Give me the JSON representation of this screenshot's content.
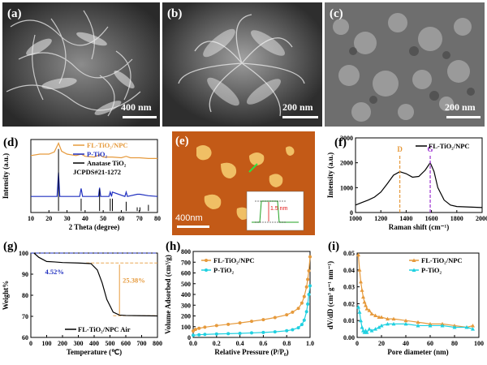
{
  "figure": {
    "panels": {
      "a": {
        "label": "(a)",
        "scale_bar": "400 nm"
      },
      "b": {
        "label": "(b)",
        "scale_bar": "200 nm"
      },
      "c": {
        "label": "(c)",
        "scale_bar": "200 nm"
      },
      "e": {
        "label": "(e)",
        "scale_bar": "400nm",
        "inset_label": "1.5 nm"
      }
    },
    "colors": {
      "orange": "#e69a3c",
      "blue": "#2030c0",
      "cyan": "#20d0e0",
      "black": "#000000",
      "afm_base": "#c35a17"
    }
  },
  "chart_data": [
    {
      "panel": "(d)",
      "type": "line",
      "xlabel": "2 Theta (degree)",
      "ylabel": "Intensity (a.u.)",
      "xlim": [
        10,
        80
      ],
      "xticks": [
        10,
        20,
        30,
        40,
        50,
        60,
        70,
        80
      ],
      "legend": [
        "FL-TiO₂/NPC",
        "P-TiO₂",
        "Anatase TiO₂",
        "JCPDS#21-1272"
      ],
      "legend_loc": "top-right",
      "series": [
        {
          "name": "FL-TiO₂/NPC",
          "x": [
            10,
            15,
            20,
            23,
            25.3,
            27,
            30,
            35,
            37.8,
            40,
            45,
            48,
            50,
            55,
            60,
            62.7,
            65,
            70,
            75,
            80
          ],
          "y": [
            0.78,
            0.8,
            0.8,
            0.83,
            0.95,
            0.84,
            0.8,
            0.78,
            0.8,
            0.77,
            0.76,
            0.79,
            0.76,
            0.76,
            0.75,
            0.77,
            0.75,
            0.75,
            0.74,
            0.74
          ]
        },
        {
          "name": "P-TiO₂",
          "x": [
            10,
            24.5,
            25.3,
            26,
            37,
            37.8,
            38.6,
            47.4,
            48,
            48.6,
            53.2,
            53.9,
            54.6,
            55.1,
            62,
            62.7,
            63.4,
            68.8,
            70.3,
            75,
            80
          ],
          "y": [
            0.22,
            0.22,
            0.55,
            0.22,
            0.22,
            0.33,
            0.22,
            0.22,
            0.34,
            0.22,
            0.22,
            0.28,
            0.22,
            0.28,
            0.22,
            0.28,
            0.22,
            0.25,
            0.25,
            0.23,
            0.22
          ]
        },
        {
          "name": "Anatase TiO₂",
          "sticks_x": [
            25.3,
            37.8,
            48.0,
            53.9,
            55.1,
            62.7,
            68.8,
            70.3,
            75.0
          ],
          "sticks_h": [
            1.0,
            0.2,
            0.35,
            0.2,
            0.2,
            0.15,
            0.06,
            0.06,
            0.1
          ]
        }
      ]
    },
    {
      "panel": "(f)",
      "type": "line",
      "title": "FL-TiO₂/NPC",
      "xlabel": "Raman shift (cm⁻¹)",
      "ylabel": "Intensity (a.u.)",
      "xlim": [
        1000,
        2000
      ],
      "ylim": [
        0,
        3000
      ],
      "xticks": [
        1000,
        1200,
        1400,
        1600,
        1800,
        2000
      ],
      "yticks": [
        0,
        1000,
        2000,
        3000
      ],
      "annotations": [
        {
          "text": "D",
          "x": 1350
        },
        {
          "text": "G",
          "x": 1590
        }
      ],
      "series": [
        {
          "name": "FL-TiO₂/NPC",
          "x": [
            1000,
            1050,
            1100,
            1150,
            1200,
            1250,
            1300,
            1350,
            1400,
            1450,
            1500,
            1550,
            1590,
            1620,
            1650,
            1700,
            1750,
            1800,
            1900,
            2000
          ],
          "y": [
            300,
            400,
            500,
            620,
            820,
            1150,
            1500,
            1640,
            1560,
            1420,
            1450,
            1700,
            2000,
            1650,
            1000,
            500,
            300,
            240,
            220,
            200
          ]
        }
      ]
    },
    {
      "panel": "(g)",
      "type": "line",
      "xlabel": "Temperature (℃)",
      "ylabel": "Weight%",
      "xlim": [
        0,
        800
      ],
      "ylim": [
        60,
        100
      ],
      "xticks": [
        0,
        100,
        200,
        300,
        400,
        500,
        600,
        700,
        800
      ],
      "yticks": [
        60,
        70,
        80,
        90,
        100
      ],
      "annotations": [
        "4.52%",
        "25.38%"
      ],
      "series": [
        {
          "name": "FL-TiO₂/NPC Air",
          "x": [
            20,
            50,
            100,
            150,
            200,
            300,
            380,
            420,
            450,
            480,
            520,
            560,
            600,
            700,
            800
          ],
          "y": [
            100,
            98,
            96,
            95.8,
            95.5,
            95.3,
            95,
            92,
            86,
            78,
            72,
            70.6,
            70.4,
            70.3,
            70.2
          ]
        }
      ]
    },
    {
      "panel": "(h)",
      "type": "line",
      "xlabel": "Relative Pressure (P/P₀)",
      "ylabel": "Volume Adsorbed (cm³/g)",
      "xlim": [
        0,
        1
      ],
      "ylim": [
        0,
        800
      ],
      "xticks": [
        0.0,
        0.2,
        0.4,
        0.6,
        0.8,
        1.0
      ],
      "yticks": [
        0,
        100,
        200,
        300,
        400,
        500,
        600,
        700,
        800
      ],
      "series": [
        {
          "name": "FL-TiO₂/NPC",
          "x": [
            0.0,
            0.02,
            0.05,
            0.1,
            0.2,
            0.3,
            0.4,
            0.5,
            0.6,
            0.7,
            0.8,
            0.85,
            0.9,
            0.93,
            0.95,
            0.97,
            0.98,
            0.99,
            1.0
          ],
          "y": [
            60,
            75,
            85,
            95,
            110,
            122,
            135,
            150,
            165,
            185,
            210,
            235,
            270,
            320,
            380,
            470,
            540,
            620,
            750
          ]
        },
        {
          "name": "P-TiO₂",
          "x": [
            0.0,
            0.05,
            0.1,
            0.2,
            0.3,
            0.4,
            0.5,
            0.6,
            0.7,
            0.8,
            0.85,
            0.9,
            0.93,
            0.95,
            0.97,
            0.98,
            0.99,
            1.0
          ],
          "y": [
            20,
            25,
            28,
            32,
            35,
            38,
            42,
            46,
            52,
            62,
            72,
            90,
            120,
            160,
            240,
            310,
            400,
            480
          ]
        }
      ]
    },
    {
      "panel": "(i)",
      "type": "line",
      "xlabel": "Pore diameter (nm)",
      "ylabel": "dV/dD (cm³ g⁻¹ nm⁻¹)",
      "xlim": [
        0,
        100
      ],
      "ylim": [
        0,
        0.05
      ],
      "xticks": [
        0,
        20,
        40,
        60,
        80,
        100
      ],
      "yticks": [
        0.0,
        0.01,
        0.02,
        0.03,
        0.04,
        0.05
      ],
      "series": [
        {
          "name": "FL-TiO₂/NPC",
          "x": [
            1,
            2,
            3,
            4,
            5,
            6,
            7,
            8,
            10,
            12,
            15,
            18,
            20,
            25,
            30,
            40,
            50,
            60,
            70,
            80,
            90,
            95
          ],
          "y": [
            0.049,
            0.04,
            0.033,
            0.028,
            0.024,
            0.021,
            0.019,
            0.017,
            0.016,
            0.014,
            0.013,
            0.012,
            0.012,
            0.011,
            0.011,
            0.01,
            0.009,
            0.008,
            0.008,
            0.007,
            0.006,
            0.007
          ]
        },
        {
          "name": "P-TiO₂",
          "x": [
            1,
            2,
            3,
            4,
            5,
            6,
            7,
            8,
            10,
            12,
            15,
            18,
            20,
            25,
            30,
            40,
            50,
            60,
            70,
            80,
            90,
            95
          ],
          "y": [
            0.018,
            0.015,
            0.01,
            0.006,
            0.004,
            0.003,
            0.004,
            0.003,
            0.005,
            0.004,
            0.005,
            0.006,
            0.007,
            0.008,
            0.008,
            0.008,
            0.007,
            0.007,
            0.007,
            0.006,
            0.006,
            0.005
          ]
        }
      ]
    }
  ]
}
